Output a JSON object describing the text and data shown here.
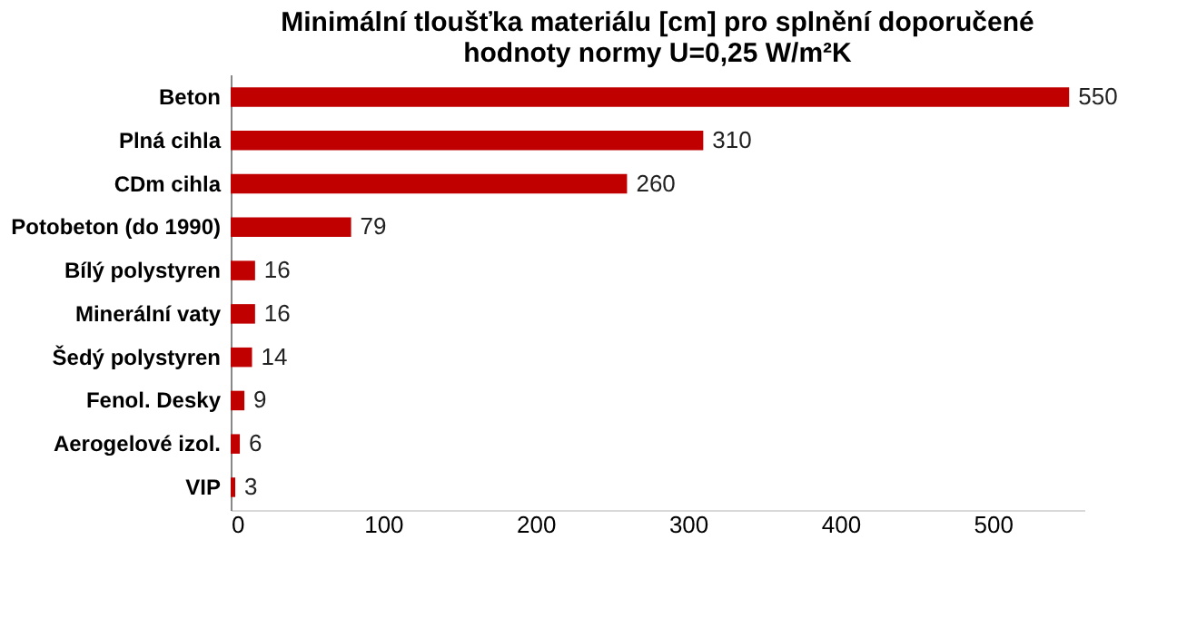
{
  "chart_data": {
    "type": "bar",
    "orientation": "horizontal",
    "title": "Minimální tloušťka materiálu [cm]  pro splnění doporučené\nhodnoty normy U=0,25 W/m²K",
    "categories": [
      "Beton",
      "Plná cihla",
      "CDm cihla",
      "Potobeton (do 1990)",
      "Bílý polystyren",
      "Minerální vaty",
      "Šedý polystyren",
      "Fenol. Desky",
      "Aerogelové izol.",
      "VIP"
    ],
    "values": [
      550,
      310,
      260,
      79,
      16,
      16,
      14,
      9,
      6,
      3
    ],
    "color": "#c00000",
    "xlim": [
      0,
      560
    ],
    "xticks": [
      0,
      100,
      200,
      300,
      400,
      500
    ],
    "data_labels": true,
    "grid": false
  }
}
